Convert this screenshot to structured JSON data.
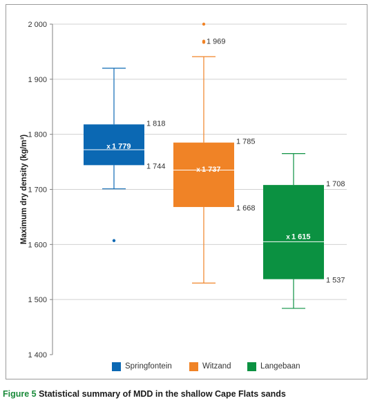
{
  "chart_data": {
    "type": "box",
    "ylabel": "Maximum dry density (kg/m³)",
    "ylim": [
      1400,
      2000
    ],
    "yticks": [
      {
        "value": 1400,
        "label": "1 400"
      },
      {
        "value": 1500,
        "label": "1 500"
      },
      {
        "value": 1600,
        "label": "1 600"
      },
      {
        "value": 1700,
        "label": "1 700"
      },
      {
        "value": 1800,
        "label": "1 800"
      },
      {
        "value": 1900,
        "label": "1 900"
      },
      {
        "value": 2000,
        "label": "2 000"
      }
    ],
    "grid": true,
    "legend_position": "bottom",
    "series": [
      {
        "name": "Springfontein",
        "color": "#0b68b3",
        "min": 1701,
        "q1": 1744,
        "median": 1772,
        "q3": 1818,
        "max": 1920,
        "mean": 1779,
        "outliers": [
          1607
        ],
        "q3_label": "1 818",
        "q1_label": "1 744",
        "mean_label": "1 779"
      },
      {
        "name": "Witzand",
        "color": "#f08326",
        "min": 1530,
        "q1": 1668,
        "median": 1735,
        "q3": 1785,
        "max": 1941,
        "mean": 1737,
        "outliers": [
          1967,
          1969,
          2000
        ],
        "outlier_label": "1 969",
        "q3_label": "1 785",
        "q1_label": "1 668",
        "mean_label": "1 737"
      },
      {
        "name": "Langebaan",
        "color": "#0b9141",
        "min": 1484,
        "q1": 1537,
        "median": 1605,
        "q3": 1708,
        "max": 1765,
        "mean": 1615,
        "outliers": [],
        "q3_label": "1 708",
        "q1_label": "1 537",
        "mean_label": "1 615"
      }
    ]
  },
  "caption": {
    "figure_label": "Figure 5",
    "text": " Statistical summary of MDD in the shallow Cape Flats sands"
  }
}
